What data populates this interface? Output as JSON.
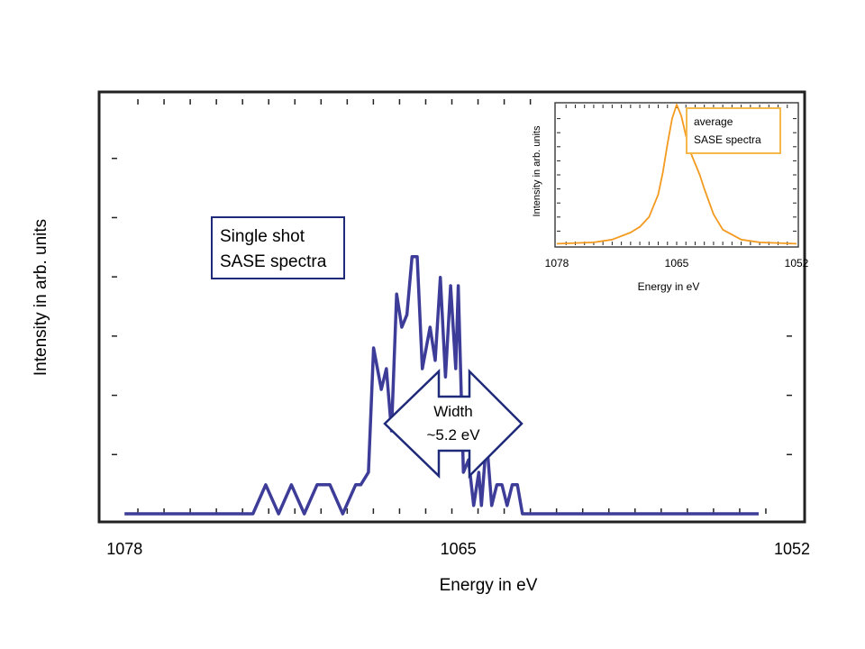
{
  "chart_data": [
    {
      "type": "line",
      "xlabel": "Energy in eV",
      "ylabel": "Intensity in arb. units",
      "x_ticks": [
        1078,
        1065,
        1052
      ],
      "x_reversed": true,
      "xlim": [
        1078.5,
        1052
      ],
      "ylim": [
        0,
        1.0
      ],
      "series": [
        {
          "color": "#3d3d99",
          "x": [
            1078,
            1073,
            1072.5,
            1072,
            1071.5,
            1071,
            1070.5,
            1070,
            1069.5,
            1069,
            1068.8,
            1068.5,
            1068.3,
            1068,
            1067.8,
            1067.6,
            1067.4,
            1067.2,
            1067,
            1066.8,
            1066.6,
            1066.4,
            1066.1,
            1065.9,
            1065.7,
            1065.5,
            1065.3,
            1065.1,
            1065,
            1064.8,
            1064.6,
            1064.4,
            1064.2,
            1064.1,
            1063.9,
            1063.7,
            1063.5,
            1063.3,
            1063.1,
            1062.9,
            1062.7,
            1062.5,
            1062.1,
            1061.8,
            1053.3
          ],
          "y": [
            0,
            0,
            0.07,
            0,
            0.07,
            0,
            0.07,
            0.07,
            0,
            0.07,
            0.07,
            0.1,
            0.4,
            0.3,
            0.35,
            0.2,
            0.53,
            0.45,
            0.48,
            0.62,
            0.62,
            0.35,
            0.45,
            0.37,
            0.57,
            0.33,
            0.55,
            0.35,
            0.55,
            0.1,
            0.13,
            0.02,
            0.1,
            0.02,
            0.18,
            0.02,
            0.07,
            0.07,
            0.02,
            0.07,
            0.07,
            0,
            0,
            0,
            0
          ]
        }
      ],
      "annotations": {
        "label_box": [
          "Single shot",
          "SASE spectra"
        ],
        "width_arrow": [
          "Width",
          "~5.2 eV"
        ]
      }
    },
    {
      "type": "line",
      "xlabel": "Energy in eV",
      "ylabel": "Intensity in arb. units",
      "x_ticks": [
        1078,
        1065,
        1052
      ],
      "x_reversed": true,
      "xlim": [
        1078,
        1052
      ],
      "ylim": [
        0,
        1.0
      ],
      "series": [
        {
          "color": "#f39a1f",
          "x": [
            1078,
            1074,
            1072,
            1070,
            1069,
            1068,
            1067,
            1066.5,
            1066,
            1065.5,
            1065,
            1064.5,
            1064,
            1063.5,
            1063,
            1062.5,
            1062,
            1061,
            1060,
            1058,
            1056,
            1052
          ],
          "y": [
            0.01,
            0.02,
            0.04,
            0.09,
            0.13,
            0.2,
            0.36,
            0.52,
            0.72,
            0.9,
            1.0,
            0.92,
            0.78,
            0.66,
            0.58,
            0.5,
            0.4,
            0.22,
            0.11,
            0.04,
            0.02,
            0.01
          ]
        }
      ],
      "legend_box": [
        "average",
        "SASE spectra"
      ]
    }
  ]
}
